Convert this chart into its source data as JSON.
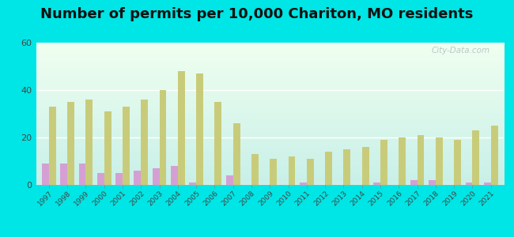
{
  "title": "Number of permits per 10,000 Chariton, MO residents",
  "years": [
    1997,
    1998,
    1999,
    2000,
    2001,
    2002,
    2003,
    2004,
    2005,
    2006,
    2007,
    2008,
    2009,
    2010,
    2011,
    2012,
    2013,
    2014,
    2015,
    2016,
    2017,
    2018,
    2019,
    2020,
    2021
  ],
  "chariton_values": [
    9,
    9,
    9,
    5,
    5,
    6,
    7,
    8,
    1,
    0,
    4,
    0,
    0,
    0,
    1,
    0,
    0,
    0,
    1,
    0,
    2,
    2,
    0,
    1,
    1
  ],
  "missouri_values": [
    33,
    35,
    36,
    31,
    33,
    36,
    40,
    48,
    47,
    35,
    26,
    13,
    11,
    12,
    11,
    14,
    15,
    16,
    19,
    20,
    21,
    20,
    19,
    23,
    25
  ],
  "chariton_color": "#d4a0d4",
  "missouri_color": "#c8cc7a",
  "background_color": "#00e5e5",
  "ylim": [
    0,
    60
  ],
  "yticks": [
    0,
    20,
    40,
    60
  ],
  "title_fontsize": 13,
  "bar_width": 0.38,
  "title_color": "#111111"
}
